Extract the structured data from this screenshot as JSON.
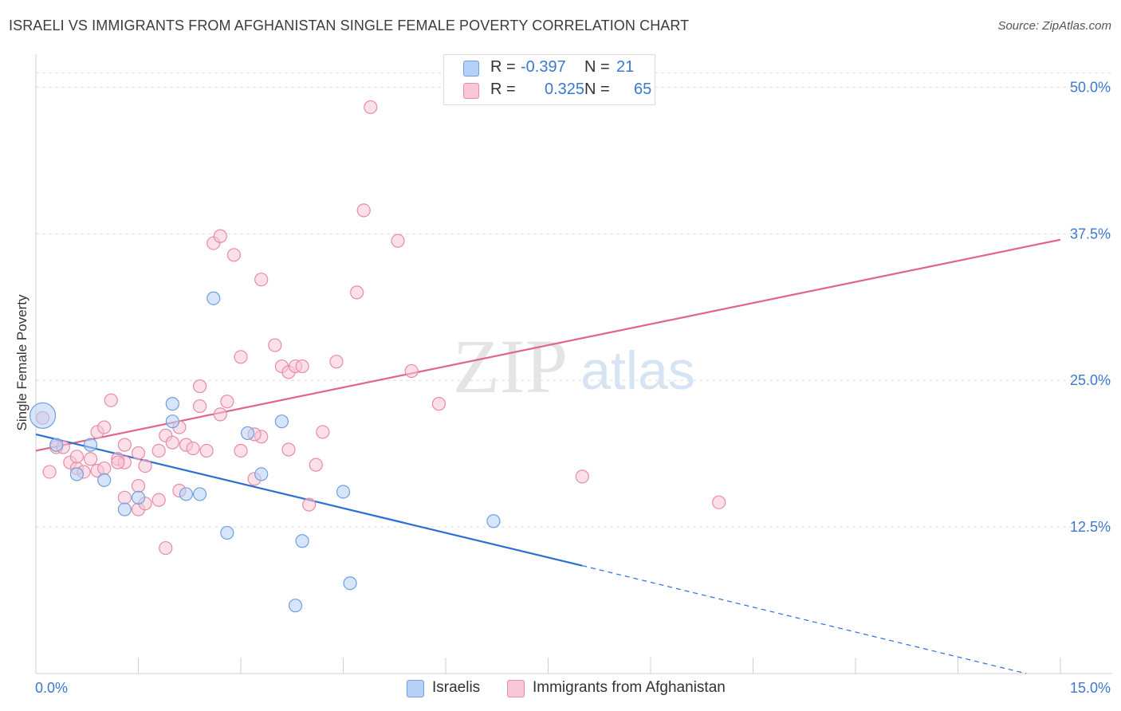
{
  "title": "ISRAELI VS IMMIGRANTS FROM AFGHANISTAN SINGLE FEMALE POVERTY CORRELATION CHART",
  "source": "Source: ZipAtlas.com",
  "watermark": {
    "zip": "ZIP",
    "atlas": "atlas"
  },
  "legend": {
    "israelis": {
      "r_label": "R =",
      "r_value": "-0.397",
      "n_label": "N =",
      "n_value": "21"
    },
    "afghan": {
      "r_label": "R =",
      "r_value": "0.325",
      "n_label": "N =",
      "n_value": "65"
    }
  },
  "colors": {
    "israelis_fill": "#b6d0f7",
    "israelis_stroke": "#6e9fe0",
    "israelis_line": "#2a6fd1",
    "afghan_fill": "#f8c7d6",
    "afghan_stroke": "#e88aa8",
    "afghan_line": "#e0648c",
    "value_text": "#3b78d0",
    "grid": "#dedede"
  },
  "chart_data": {
    "type": "scatter",
    "title": "ISRAELI VS IMMIGRANTS FROM AFGHANISTAN SINGLE FEMALE POVERTY CORRELATION CHART",
    "xlabel": "",
    "ylabel": "Single Female Poverty",
    "xlim": [
      0,
      15
    ],
    "ylim": [
      0,
      52
    ],
    "x_tick_labels": [
      "0.0%",
      "15.0%"
    ],
    "y_tick_labels": [
      "12.5%",
      "25.0%",
      "37.5%",
      "50.0%"
    ],
    "y_ticks": [
      12.5,
      25,
      37.5,
      50
    ],
    "grid": true,
    "legend_position": "bottom",
    "series": [
      {
        "name": "Israelis",
        "points": [
          [
            0.1,
            22.0
          ],
          [
            0.3,
            19.5
          ],
          [
            0.6,
            17.0
          ],
          [
            0.8,
            19.5
          ],
          [
            1.0,
            16.5
          ],
          [
            1.3,
            14.0
          ],
          [
            1.5,
            15.0
          ],
          [
            2.0,
            21.5
          ],
          [
            2.0,
            23.0
          ],
          [
            2.2,
            15.3
          ],
          [
            2.4,
            15.3
          ],
          [
            2.6,
            32.0
          ],
          [
            2.8,
            12.0
          ],
          [
            3.1,
            20.5
          ],
          [
            3.3,
            17.0
          ],
          [
            3.6,
            21.5
          ],
          [
            3.8,
            5.8
          ],
          [
            3.9,
            11.3
          ],
          [
            4.5,
            15.5
          ],
          [
            4.6,
            7.7
          ],
          [
            6.7,
            13.0
          ]
        ],
        "trend": {
          "x0": 0,
          "y0": 20.4,
          "x1": 8.0,
          "y1": 9.2,
          "x_dash_end": 14.5,
          "y_dash_end": 0
        }
      },
      {
        "name": "Immigrants from Afghanistan",
        "points": [
          [
            0.1,
            21.8
          ],
          [
            0.2,
            17.2
          ],
          [
            0.3,
            19.3
          ],
          [
            0.4,
            19.3
          ],
          [
            0.5,
            18.0
          ],
          [
            0.6,
            17.5
          ],
          [
            0.7,
            17.2
          ],
          [
            0.8,
            18.3
          ],
          [
            0.9,
            17.3
          ],
          [
            0.9,
            20.6
          ],
          [
            1.0,
            21.0
          ],
          [
            1.0,
            17.5
          ],
          [
            1.1,
            23.3
          ],
          [
            1.2,
            18.3
          ],
          [
            1.3,
            18.0
          ],
          [
            1.3,
            15.0
          ],
          [
            1.3,
            19.5
          ],
          [
            1.5,
            18.8
          ],
          [
            1.5,
            16.0
          ],
          [
            1.5,
            14.0
          ],
          [
            1.6,
            14.5
          ],
          [
            1.6,
            17.7
          ],
          [
            1.8,
            14.8
          ],
          [
            1.9,
            20.3
          ],
          [
            1.9,
            10.7
          ],
          [
            2.0,
            19.7
          ],
          [
            2.1,
            15.6
          ],
          [
            2.2,
            19.5
          ],
          [
            2.3,
            19.2
          ],
          [
            2.4,
            24.5
          ],
          [
            2.4,
            22.8
          ],
          [
            2.5,
            19.0
          ],
          [
            2.6,
            36.7
          ],
          [
            2.7,
            37.3
          ],
          [
            2.7,
            22.1
          ],
          [
            2.8,
            23.2
          ],
          [
            2.9,
            35.7
          ],
          [
            3.0,
            19.0
          ],
          [
            3.0,
            27.0
          ],
          [
            3.2,
            16.6
          ],
          [
            3.3,
            20.2
          ],
          [
            3.3,
            33.6
          ],
          [
            3.5,
            28.0
          ],
          [
            3.6,
            26.2
          ],
          [
            3.7,
            25.7
          ],
          [
            3.7,
            19.1
          ],
          [
            3.8,
            26.2
          ],
          [
            3.9,
            26.2
          ],
          [
            4.0,
            14.4
          ],
          [
            4.1,
            17.8
          ],
          [
            4.2,
            20.6
          ],
          [
            4.4,
            26.6
          ],
          [
            4.7,
            32.5
          ],
          [
            4.8,
            39.5
          ],
          [
            4.9,
            48.3
          ],
          [
            5.3,
            36.9
          ],
          [
            5.5,
            25.8
          ],
          [
            5.9,
            23.0
          ],
          [
            8.0,
            16.8
          ],
          [
            10.0,
            14.6
          ],
          [
            1.2,
            18.0
          ],
          [
            0.6,
            18.5
          ],
          [
            1.8,
            19.0
          ],
          [
            2.1,
            21.0
          ],
          [
            3.2,
            20.4
          ]
        ],
        "trend": {
          "x0": 0,
          "y0": 19.0,
          "x1": 15.0,
          "y1": 37.0
        }
      }
    ]
  }
}
